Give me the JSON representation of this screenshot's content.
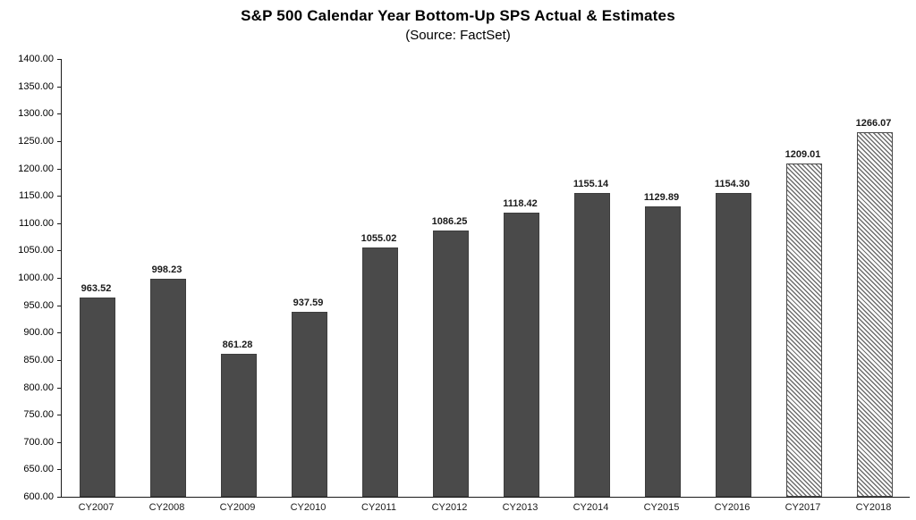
{
  "chart_data": {
    "type": "bar",
    "title": "S&P 500 Calendar Year Bottom-Up SPS Actual & Estimates",
    "subtitle": "(Source: FactSet)",
    "categories": [
      "CY2007",
      "CY2008",
      "CY2009",
      "CY2010",
      "CY2011",
      "CY2012",
      "CY2013",
      "CY2014",
      "CY2015",
      "CY2016",
      "CY2017",
      "CY2018"
    ],
    "values": [
      963.52,
      998.23,
      861.28,
      937.59,
      1055.02,
      1086.25,
      1118.42,
      1155.14,
      1129.89,
      1154.3,
      1209.01,
      1266.07
    ],
    "estimate_indices": [
      10,
      11
    ],
    "ylabel": "",
    "xlabel": "",
    "ylim": [
      600,
      1400
    ],
    "ytick_step": 50,
    "ytick_format_decimals": 2,
    "value_labels": true,
    "grid": false,
    "legend": false,
    "bar_color": "#4a4a4a",
    "estimate_pattern": "diagonal-hatch"
  }
}
